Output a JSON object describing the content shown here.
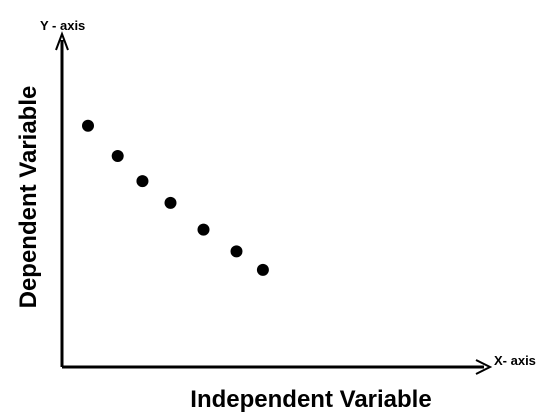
{
  "chart_data": {
    "type": "scatter",
    "title": "",
    "xlabel": "Independent Variable",
    "ylabel": "Dependent Variable",
    "x_axis_name": "X- axis",
    "y_axis_name": "Y - axis",
    "grid": false,
    "legend": "none",
    "point_color": "#000000",
    "series": [
      {
        "x": [
          1.0,
          1.9,
          2.65,
          3.5,
          4.5,
          5.5,
          6.3
        ],
        "y": [
          7.2,
          6.3,
          5.55,
          4.9,
          4.1,
          3.45,
          2.9
        ]
      }
    ]
  }
}
